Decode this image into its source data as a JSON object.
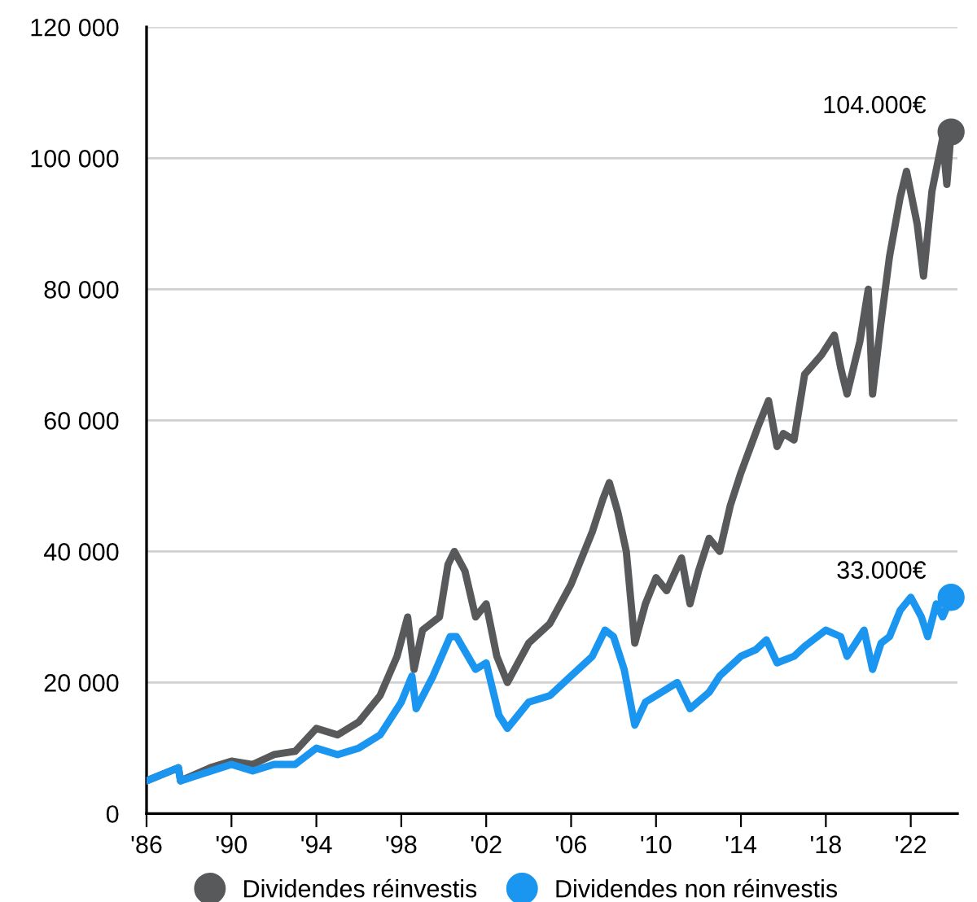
{
  "chart_data": {
    "type": "line",
    "xlim": [
      1986,
      2024.2
    ],
    "ylim": [
      0,
      120000
    ],
    "xticks": [
      {
        "value": 1986,
        "label": "'86"
      },
      {
        "value": 1990,
        "label": "'90"
      },
      {
        "value": 1994,
        "label": "'94"
      },
      {
        "value": 1998,
        "label": "'98"
      },
      {
        "value": 2002,
        "label": "'02"
      },
      {
        "value": 2006,
        "label": "'06"
      },
      {
        "value": 2010,
        "label": "'10"
      },
      {
        "value": 2014,
        "label": "'14"
      },
      {
        "value": 2018,
        "label": "'18"
      },
      {
        "value": 2022,
        "label": "'22"
      }
    ],
    "yticks": [
      {
        "value": 0,
        "label": "0"
      },
      {
        "value": 20000,
        "label": "20 000"
      },
      {
        "value": 40000,
        "label": "40 000"
      },
      {
        "value": 60000,
        "label": "60 000"
      },
      {
        "value": 80000,
        "label": "80 000"
      },
      {
        "value": 100000,
        "label": "100 000"
      },
      {
        "value": 120000,
        "label": "120 000"
      }
    ],
    "grid": "y",
    "legend": "bottom",
    "series": [
      {
        "name": "Dividendes réinvestis",
        "color": "#58595b",
        "x": [
          1986,
          1987.5,
          1987.6,
          1989,
          1990,
          1991,
          1992,
          1993,
          1994,
          1995,
          1996,
          1997,
          1997.8,
          1998.3,
          1998.6,
          1999,
          1999.8,
          2000.2,
          2000.5,
          2001,
          2001.5,
          2002,
          2002.5,
          2003,
          2003.5,
          2004,
          2005,
          2006,
          2007,
          2007.5,
          2007.8,
          2008.2,
          2008.6,
          2009,
          2009.5,
          2010,
          2010.5,
          2011.2,
          2011.6,
          2012,
          2012.5,
          2013,
          2013.5,
          2014,
          2014.8,
          2015.3,
          2015.7,
          2016,
          2016.5,
          2017,
          2017.8,
          2018.4,
          2018.7,
          2019,
          2019.6,
          2020,
          2020.2,
          2020.6,
          2021,
          2021.5,
          2021.8,
          2022.3,
          2022.6,
          2023,
          2023.5,
          2023.7,
          2023.9
        ],
        "values": [
          5000,
          7000,
          5000,
          7000,
          8000,
          7500,
          9000,
          9500,
          13000,
          12000,
          14000,
          18000,
          24000,
          30000,
          22000,
          28000,
          30000,
          38000,
          40000,
          37000,
          30000,
          32000,
          24000,
          20000,
          23000,
          26000,
          29000,
          35000,
          43000,
          48000,
          50500,
          46000,
          40000,
          26000,
          32000,
          36000,
          34000,
          39000,
          32000,
          37000,
          42000,
          40000,
          47000,
          52000,
          59000,
          63000,
          56000,
          58000,
          57000,
          67000,
          70000,
          73000,
          68000,
          64000,
          72000,
          80000,
          64000,
          75000,
          85000,
          94000,
          98000,
          90000,
          82000,
          95000,
          103000,
          96000,
          104000
        ]
      },
      {
        "name": "Dividendes non réinvestis",
        "color": "#1a96f0",
        "x": [
          1986,
          1987.5,
          1987.6,
          1990,
          1991,
          1992,
          1993,
          1994,
          1995,
          1996,
          1997,
          1998,
          1998.5,
          1998.7,
          1999.5,
          2000.3,
          2000.6,
          2001.5,
          2002,
          2002.6,
          2003,
          2003.5,
          2004,
          2005,
          2006,
          2007,
          2007.6,
          2008,
          2008.5,
          2009,
          2009.5,
          2010,
          2011,
          2011.6,
          2012.5,
          2013,
          2014,
          2014.7,
          2015.2,
          2015.7,
          2016.5,
          2017,
          2018,
          2018.7,
          2019,
          2019.8,
          2020.2,
          2020.6,
          2021,
          2021.5,
          2022,
          2022.5,
          2022.8,
          2023.2,
          2023.5,
          2023.9
        ],
        "values": [
          5000,
          7000,
          5000,
          7500,
          6500,
          7500,
          7500,
          10000,
          9000,
          10000,
          12000,
          17000,
          21000,
          16000,
          21000,
          27000,
          27000,
          22000,
          23000,
          15000,
          13000,
          15000,
          17000,
          18000,
          21000,
          24000,
          28000,
          27000,
          22000,
          13500,
          17000,
          18000,
          20000,
          16000,
          18500,
          21000,
          24000,
          25000,
          26500,
          23000,
          24000,
          25500,
          28000,
          27000,
          24000,
          28000,
          22000,
          26000,
          27000,
          31000,
          33000,
          30000,
          27000,
          32000,
          30000,
          33000
        ]
      }
    ],
    "annotations": [
      {
        "text": "104.000€",
        "x": 2023.9,
        "y": 104000
      },
      {
        "text": "33.000€",
        "x": 2023.9,
        "y": 33000
      }
    ]
  }
}
